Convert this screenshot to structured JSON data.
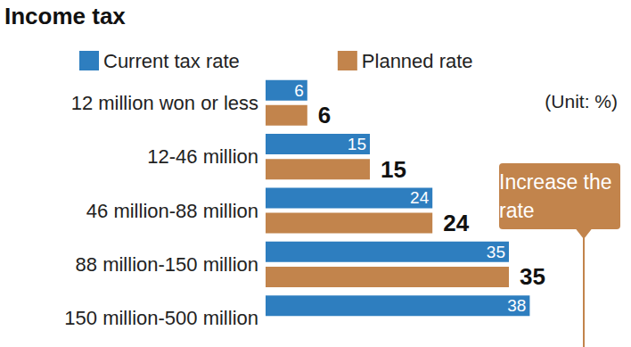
{
  "chart_data": {
    "type": "bar",
    "title": "Income tax",
    "subtitle": "(Unit: %)",
    "orientation": "horizontal",
    "categories": [
      "12 million won or less",
      "12-46 million",
      "46 million-88 million",
      "88 million-150 million",
      "150 million-500 million"
    ],
    "series": [
      {
        "name": "Current tax rate",
        "color": "#2e7ebf",
        "values": [
          6,
          15,
          24,
          35,
          38
        ]
      },
      {
        "name": "Planned rate",
        "color": "#c2844c",
        "values": [
          6,
          15,
          24,
          35,
          null
        ]
      }
    ],
    "xlim": [
      0,
      50
    ],
    "tick_labels": "y",
    "data_labels": true,
    "grid": false,
    "legend": "top",
    "annotations": [
      "Increase the rate"
    ]
  }
}
